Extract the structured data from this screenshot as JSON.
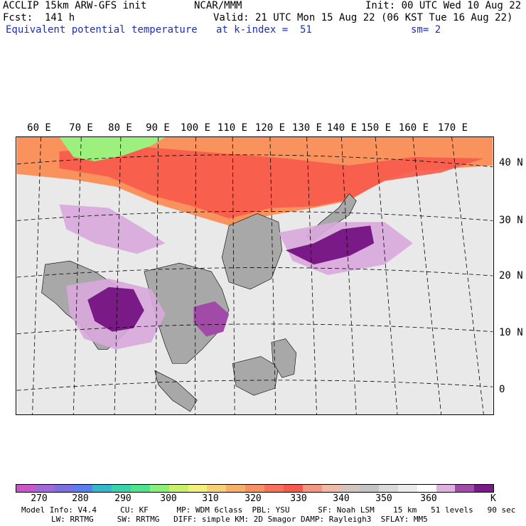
{
  "header": {
    "line1_left": "ACCLIP 15km ARW-GFS init",
    "line1_center": "NCAR/MMM",
    "line1_right": "Init: 00 UTC Wed 10 Aug 22",
    "line2_left": "Fcst:  141 h",
    "line2_right": "Valid: 21 UTC Mon 15 Aug 22 (06 KST Tue 16 Aug 22)",
    "line3_left": "Equivalent potential temperature",
    "line3_center": "at k-index =  51",
    "line3_right": "sm= 2"
  },
  "map": {
    "lon_labels": [
      "60 E",
      "70 E",
      "80 E",
      "90 E",
      "100 E",
      "110 E",
      "120 E",
      "130 E",
      "140 E",
      "150 E",
      "160 E",
      "170 E"
    ],
    "lat_labels": [
      "40 N",
      "30 N",
      "20 N",
      "10 N",
      "0"
    ],
    "colors": {
      "ocean": "#e9e9e9",
      "land": "#a8a8a8",
      "purple_light": "#d8a8dc",
      "purple_mid": "#a24aa8",
      "purple_dark": "#7a1a86",
      "red": "#f75a4a",
      "orange": "#f9925c",
      "green": "#9ef07e",
      "coast": "#000000",
      "grid": "#000000"
    }
  },
  "colorbar": {
    "colors": [
      "#cc55cc",
      "#a267d8",
      "#7c6fe2",
      "#5a7ef0",
      "#36b6cc",
      "#38d2ac",
      "#4ee48e",
      "#8af078",
      "#c8f06a",
      "#f0f07a",
      "#f6d072",
      "#f8b068",
      "#f99060",
      "#f8705a",
      "#f75a4a",
      "#f49682",
      "#eebca6",
      "#d4c6be",
      "#c4c4c4",
      "#dadada",
      "#ececec",
      "#ffffff",
      "#deb2df",
      "#a24aa8",
      "#7a1a86"
    ],
    "ticks": [
      "270",
      "280",
      "290",
      "300",
      "310",
      "320",
      "330",
      "340",
      "350",
      "360"
    ],
    "unit": "K"
  },
  "model_info": {
    "line1": "Model Info: V4.4     CU: KF      MP: WDM 6class  PBL: YSU      SF: Noah LSM    15 km   51 levels   90 sec",
    "line2": "LW: RRTMG     SW: RRTMG   DIFF: simple KM: 2D Smagor DAMP: Rayleigh3  SFLAY: MM5"
  }
}
